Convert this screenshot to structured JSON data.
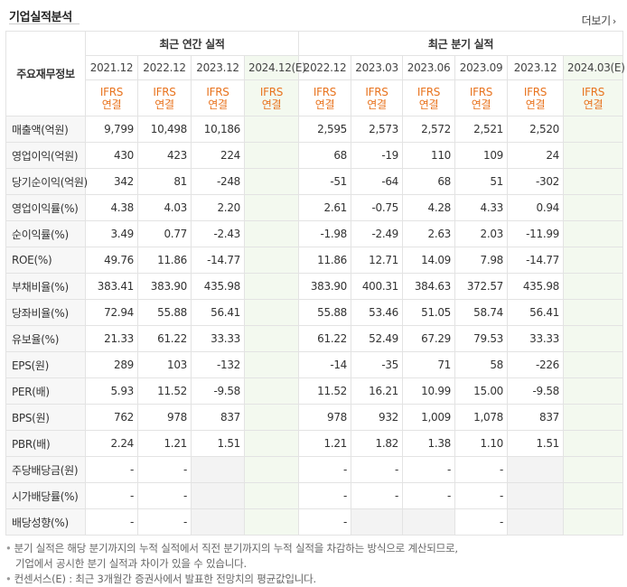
{
  "header": {
    "title": "기업실적분석",
    "more_label": "더보기",
    "more_icon": "chevron-right-icon"
  },
  "table": {
    "row_head": "주요재무정보",
    "annual_group": "최근 연간 실적",
    "quarter_group": "최근 분기 실적",
    "periods": [
      "2021.12",
      "2022.12",
      "2023.12",
      "2024.12(E)",
      "2022.12",
      "2023.03",
      "2023.06",
      "2023.09",
      "2023.12",
      "2024.03(E)"
    ],
    "basis_line1": "IFRS",
    "basis_line2": "연결",
    "rows": [
      {
        "label": "매출액(억원)",
        "values": [
          "9,799",
          "10,498",
          "10,186",
          "",
          "2,595",
          "2,573",
          "2,572",
          "2,521",
          "2,520",
          ""
        ]
      },
      {
        "label": "영업이익(억원)",
        "values": [
          "430",
          "423",
          "224",
          "",
          "68",
          "-19",
          "110",
          "109",
          "24",
          ""
        ]
      },
      {
        "label": "당기순이익(억원)",
        "values": [
          "342",
          "81",
          "-248",
          "",
          "-51",
          "-64",
          "68",
          "51",
          "-302",
          ""
        ]
      },
      {
        "label": "영업이익률(%)",
        "values": [
          "4.38",
          "4.03",
          "2.20",
          "",
          "2.61",
          "-0.75",
          "4.28",
          "4.33",
          "0.94",
          ""
        ]
      },
      {
        "label": "순이익률(%)",
        "values": [
          "3.49",
          "0.77",
          "-2.43",
          "",
          "-1.98",
          "-2.49",
          "2.63",
          "2.03",
          "-11.99",
          ""
        ]
      },
      {
        "label": "ROE(%)",
        "values": [
          "49.76",
          "11.86",
          "-14.77",
          "",
          "11.86",
          "12.71",
          "14.09",
          "7.98",
          "-14.77",
          ""
        ]
      },
      {
        "label": "부채비율(%)",
        "values": [
          "383.41",
          "383.90",
          "435.98",
          "",
          "383.90",
          "400.31",
          "384.63",
          "372.57",
          "435.98",
          ""
        ]
      },
      {
        "label": "당좌비율(%)",
        "values": [
          "72.94",
          "55.88",
          "56.41",
          "",
          "55.88",
          "53.46",
          "51.05",
          "58.74",
          "56.41",
          ""
        ]
      },
      {
        "label": "유보율(%)",
        "values": [
          "21.33",
          "61.22",
          "33.33",
          "",
          "61.22",
          "52.49",
          "67.29",
          "79.53",
          "33.33",
          ""
        ]
      },
      {
        "label": "EPS(원)",
        "values": [
          "289",
          "103",
          "-132",
          "",
          "-14",
          "-35",
          "71",
          "58",
          "-226",
          ""
        ]
      },
      {
        "label": "PER(배)",
        "values": [
          "5.93",
          "11.52",
          "-9.58",
          "",
          "11.52",
          "16.21",
          "10.99",
          "15.00",
          "-9.58",
          ""
        ]
      },
      {
        "label": "BPS(원)",
        "values": [
          "762",
          "978",
          "837",
          "",
          "978",
          "932",
          "1,009",
          "1,078",
          "837",
          ""
        ]
      },
      {
        "label": "PBR(배)",
        "values": [
          "2.24",
          "1.21",
          "1.51",
          "",
          "1.21",
          "1.82",
          "1.38",
          "1.10",
          "1.51",
          ""
        ]
      },
      {
        "label": "주당배당금(원)",
        "values": [
          "-",
          "-",
          "",
          "",
          "-",
          "-",
          "-",
          "-",
          "",
          ""
        ]
      },
      {
        "label": "시가배당률(%)",
        "values": [
          "-",
          "-",
          "",
          "",
          "-",
          "-",
          "-",
          "-",
          "",
          ""
        ]
      },
      {
        "label": "배당성향(%)",
        "values": [
          "-",
          "-",
          "",
          "",
          "-",
          "",
          "",
          "-",
          "",
          ""
        ]
      }
    ]
  },
  "colors": {
    "negative": "#e6002d",
    "ifrs": "#e8731e",
    "estimate_bg": "#f3f9ef"
  },
  "notes": {
    "note1_line1": "분기 실적은 해당 분기까지의 누적 실적에서 직전 분기까지의 누적 실적을 차감하는 방식으로 계산되므로,",
    "note1_line2": "기업에서 공시한 분기 실적과 차이가 있을 수 있습니다.",
    "note2": "컨센서스(E) : 최근 3개월간 증권사에서 발표한 전망치의 평균값입니다."
  }
}
